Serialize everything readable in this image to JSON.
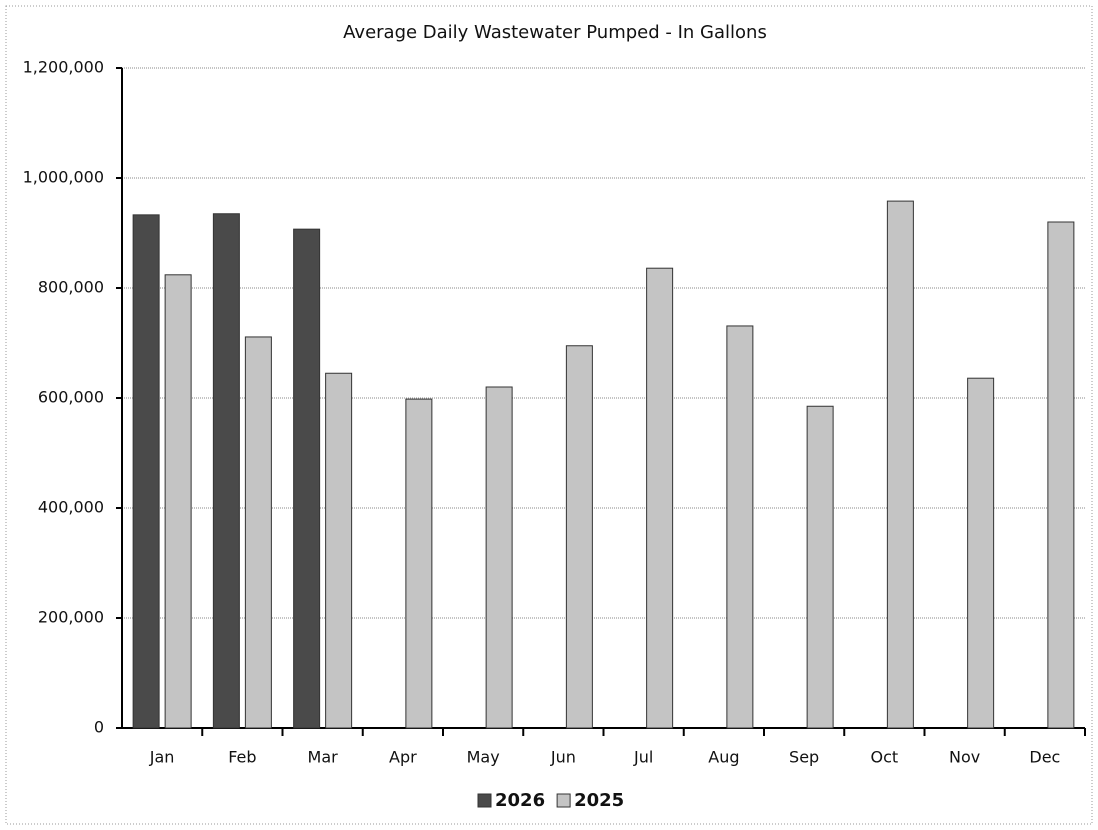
{
  "chart_data": {
    "type": "bar",
    "title": "Average Daily Wastewater Pumped - In Gallons",
    "categories": [
      "Jan",
      "Feb",
      "Mar",
      "Apr",
      "May",
      "Jun",
      "Jul",
      "Aug",
      "Sep",
      "Oct",
      "Nov",
      "Dec"
    ],
    "series": [
      {
        "name": "2026",
        "color": "#4a4a4a",
        "values": [
          933000,
          935000,
          907000,
          null,
          null,
          null,
          null,
          null,
          null,
          null,
          null,
          null
        ]
      },
      {
        "name": "2025",
        "color": "#c4c4c4",
        "values": [
          824000,
          711000,
          645000,
          598000,
          620000,
          695000,
          836000,
          731000,
          585000,
          958000,
          636000,
          920000
        ]
      }
    ],
    "ylim": [
      0,
      1200000
    ],
    "yticks": [
      0,
      {
        "value": 200000,
        "label": "200,000"
      },
      {
        "value": 400000,
        "label": "400,000"
      },
      {
        "value": 600000,
        "label": "600,000"
      },
      {
        "value": 800000,
        "label": "800,000"
      },
      {
        "value": 1000000,
        "label": "1,000,000"
      },
      {
        "value": 1200000,
        "label": "1,200,000"
      }
    ],
    "grid": true,
    "legend": "bottom"
  }
}
